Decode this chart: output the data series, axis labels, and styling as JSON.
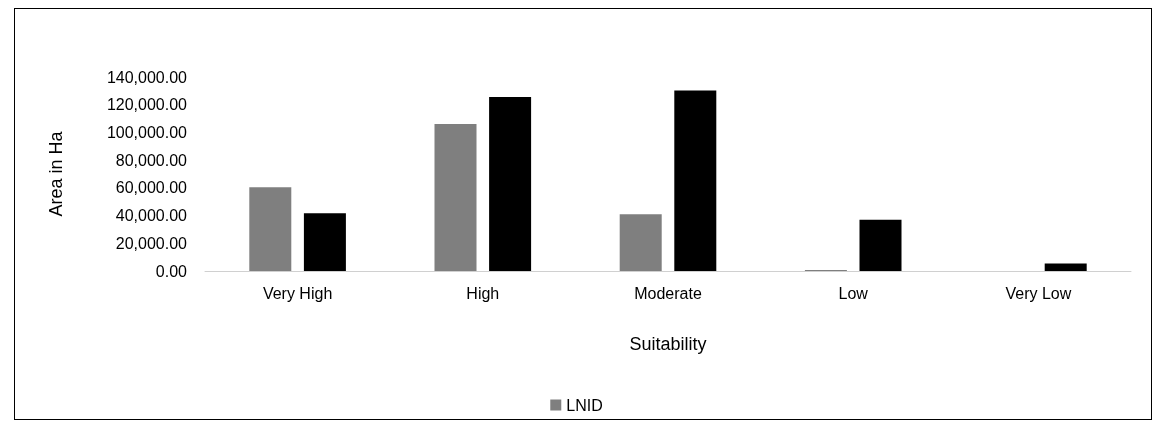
{
  "chart_data": {
    "type": "bar",
    "xlabel": "Suitability",
    "ylabel": "Area in Ha",
    "categories": [
      "Very High",
      "High",
      "Moderate",
      "Low",
      "Very Low"
    ],
    "series": [
      {
        "name": "LNID",
        "color": "#7f7f7f",
        "values": [
          60500,
          106000,
          40900,
          800,
          0
        ]
      },
      {
        "color": "#000000",
        "values": [
          41600,
          125600,
          130300,
          37000,
          5400
        ]
      }
    ],
    "ylim": [
      0,
      140000
    ],
    "yticks": [
      {
        "value": 0,
        "label": "0.00"
      },
      {
        "value": 20000,
        "label": "20,000.00"
      },
      {
        "value": 40000,
        "label": "40,000.00"
      },
      {
        "value": 60000,
        "label": "60,000.00"
      },
      {
        "value": 80000,
        "label": "80,000.00"
      },
      {
        "value": 100000,
        "label": "100,000.00"
      },
      {
        "value": 120000,
        "label": "120,000.00"
      },
      {
        "value": 140000,
        "label": "140,000.00"
      }
    ],
    "grid": false,
    "legend": "bottom"
  }
}
